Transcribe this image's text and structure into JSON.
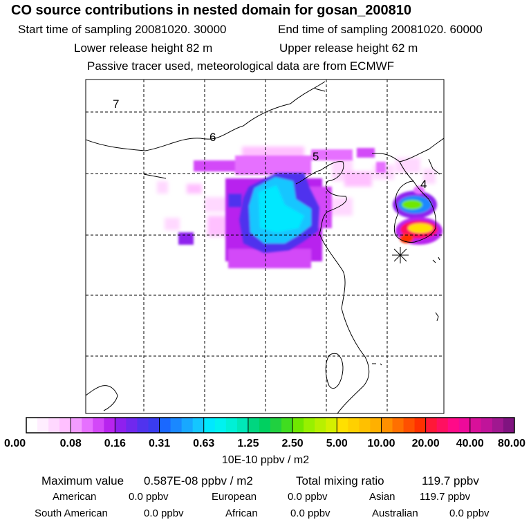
{
  "header": {
    "title": "CO  source contributions in nested domain for gosan_200810",
    "start_label": "Start time of sampling 20081020. 30000",
    "end_label": "End time of sampling 20081020. 60000",
    "lower_label": "Lower release height   82 m",
    "upper_label": "Upper release height   62 m",
    "note": "Passive tracer used, meteorological data are from ECMWF"
  },
  "chart_data": {
    "type": "heatmap",
    "title": "CO  source contributions in nested domain for gosan_200810",
    "grid_line_labels": [
      "7",
      "6",
      "5",
      "4"
    ],
    "grid": "dashed",
    "receptor_marker": "asterisk",
    "colorbar": {
      "tick_labels": [
        "0.00",
        "0.08",
        "0.16",
        "0.31",
        "0.63",
        "1.25",
        "2.50",
        "5.00",
        "10.00",
        "20.00",
        "40.00",
        "80.00"
      ],
      "units": "10E-10 ppbv / m2",
      "colors": [
        [
          "#ffffff",
          "#ffeeff",
          "#ffd8ff",
          "#ffc0ff"
        ],
        [
          "#f39cff",
          "#e670ff",
          "#d348f8",
          "#b824ee"
        ],
        [
          "#8f20ee",
          "#7028ee",
          "#5033ee",
          "#3a3cf0"
        ],
        [
          "#1a68ff",
          "#1a88ff",
          "#18a8ff",
          "#14c6ff"
        ],
        [
          "#00e8ff",
          "#00f2f0",
          "#00f0d6",
          "#00e8b8"
        ],
        [
          "#00d680",
          "#00d060",
          "#20d040",
          "#40dd20"
        ],
        [
          "#70e800",
          "#98f000",
          "#b8f000",
          "#d4f000"
        ],
        [
          "#ffe000",
          "#ffd000",
          "#ffc000",
          "#ffb000"
        ],
        [
          "#ff9000",
          "#ff7000",
          "#ff5000",
          "#ff3000"
        ],
        [
          "#ff1838",
          "#ff1060",
          "#ff0a88",
          "#ee0a9a"
        ],
        [
          "#d8109a",
          "#c0149a",
          "#a01890",
          "#801480"
        ],
        [
          "#5a0a58",
          "#3d0540",
          "#2a0030"
        ]
      ]
    },
    "summary": {
      "max_label": "Maximum value",
      "max_value": "0.587E-08 ppbv / m2",
      "total_label": "Total mixing ratio",
      "total_value": "119.7 ppbv",
      "regions": [
        {
          "name": "American",
          "value": "0.0 ppbv"
        },
        {
          "name": "European",
          "value": "0.0 ppbv"
        },
        {
          "name": "Asian",
          "value": "119.7 ppbv"
        },
        {
          "name": "South American",
          "value": "0.0 ppbv"
        },
        {
          "name": "African",
          "value": "0.0 ppbv"
        },
        {
          "name": "Australian",
          "value": "0.0 ppbv"
        }
      ]
    }
  }
}
